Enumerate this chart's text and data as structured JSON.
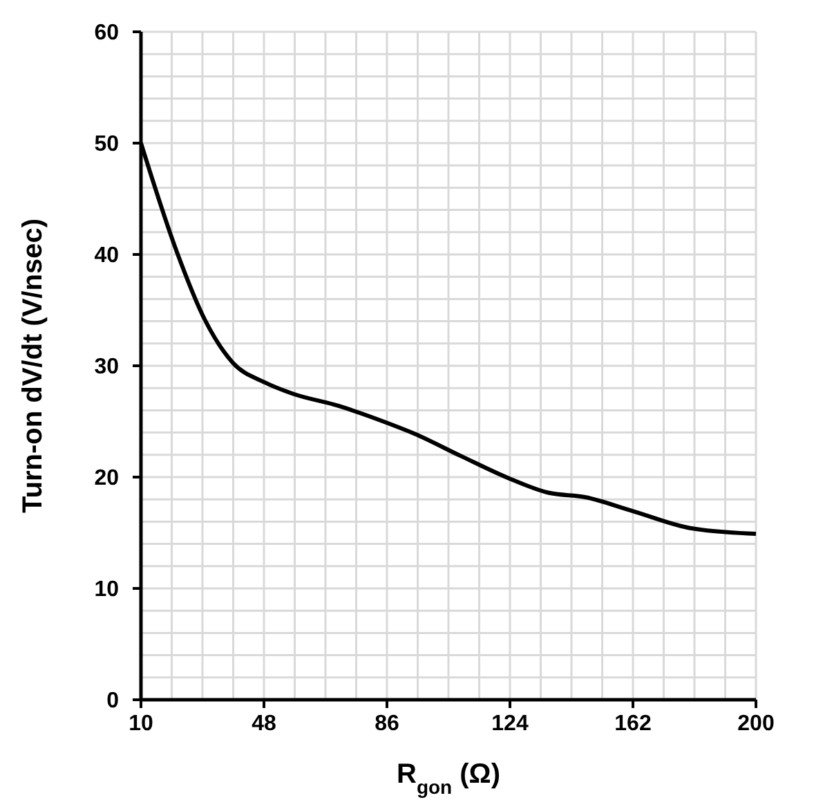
{
  "chart_data": {
    "type": "line",
    "xlabel": "R$_{gon}$ (Ω)",
    "ylabel": "Turn-on dV/dt (V/nsec)",
    "x": [
      10,
      21,
      29.8,
      38.3,
      48.3,
      56.8,
      71,
      86.7,
      94.5,
      108.8,
      124.4,
      135.8,
      147.2,
      161.4,
      180,
      200
    ],
    "series": [
      {
        "color": "#000000",
        "values": [
          50,
          40.3,
          34.1,
          30.3,
          28.5,
          27.5,
          26.4,
          24.8,
          23.9,
          21.9,
          19.8,
          18.6,
          18.2,
          17.0,
          15.4,
          14.9
        ]
      }
    ],
    "xlim": [
      10,
      200
    ],
    "xticks": [
      10,
      {
        "value": 19.5,
        "label": null
      },
      {
        "value": 29,
        "label": null
      },
      {
        "value": 38.5,
        "label": null
      },
      48,
      {
        "value": 57.5,
        "label": null
      },
      {
        "value": 67,
        "label": null
      },
      {
        "value": 76.5,
        "label": null
      },
      86,
      {
        "value": 95.5,
        "label": null
      },
      {
        "value": 105,
        "label": null
      },
      {
        "value": 114.5,
        "label": null
      },
      124,
      {
        "value": 133.5,
        "label": null
      },
      {
        "value": 143,
        "label": null
      },
      {
        "value": 152.5,
        "label": null
      },
      162,
      {
        "value": 171.5,
        "label": null
      },
      {
        "value": 181,
        "label": null
      },
      {
        "value": 190.5,
        "label": null
      },
      200
    ],
    "ylim": [
      0,
      60
    ],
    "yticks": [
      0,
      {
        "value": 2,
        "label": null
      },
      {
        "value": 4,
        "label": null
      },
      {
        "value": 6,
        "label": null
      },
      {
        "value": 8,
        "label": null
      },
      10,
      {
        "value": 12,
        "label": null
      },
      {
        "value": 14,
        "label": null
      },
      {
        "value": 16,
        "label": null
      },
      {
        "value": 18,
        "label": null
      },
      20,
      {
        "value": 22,
        "label": null
      },
      {
        "value": 24,
        "label": null
      },
      {
        "value": 26,
        "label": null
      },
      {
        "value": 28,
        "label": null
      },
      30,
      {
        "value": 32,
        "label": null
      },
      {
        "value": 34,
        "label": null
      },
      {
        "value": 36,
        "label": null
      },
      {
        "value": 38,
        "label": null
      },
      40,
      {
        "value": 42,
        "label": null
      },
      {
        "value": 44,
        "label": null
      },
      {
        "value": 46,
        "label": null
      },
      {
        "value": 48,
        "label": null
      },
      50,
      {
        "value": 52,
        "label": null
      },
      {
        "value": 54,
        "label": null
      },
      {
        "value": 56,
        "label": null
      },
      {
        "value": 58,
        "label": null
      },
      60
    ],
    "grid": true,
    "marker": "none",
    "line_style": "solid"
  }
}
